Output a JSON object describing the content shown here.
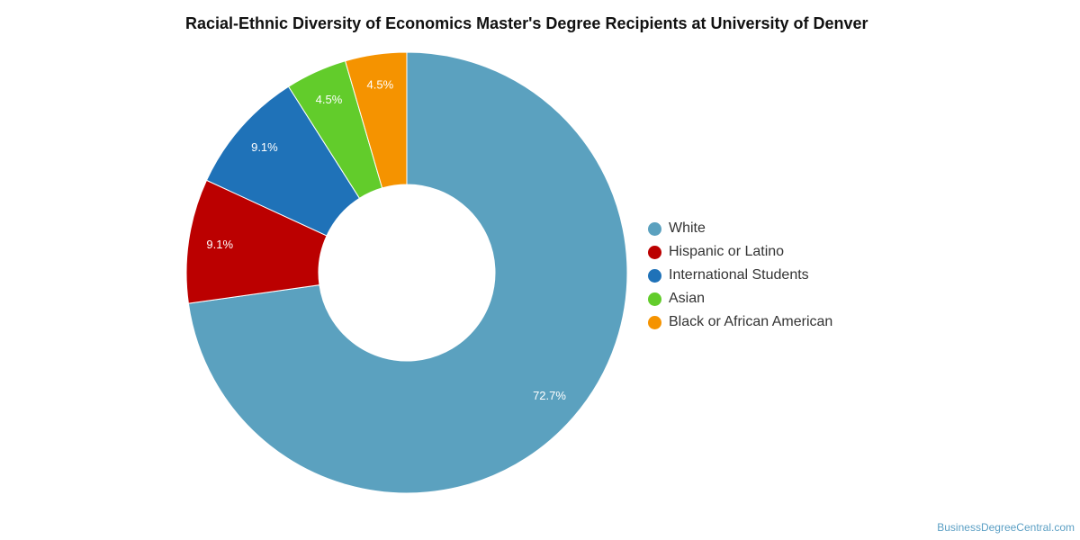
{
  "chart_data": {
    "type": "pie",
    "title": "Racial-Ethnic Diversity of Economics Master's Degree Recipients at University of Denver",
    "donut": true,
    "legend_position": "right",
    "slices": [
      {
        "label": "White",
        "value": 72.7,
        "display": "72.7%",
        "color": "#5ba1bf"
      },
      {
        "label": "Hispanic or Latino",
        "value": 9.1,
        "display": "9.1%",
        "color": "#bb0000"
      },
      {
        "label": "International Students",
        "value": 9.1,
        "display": "9.1%",
        "color": "#1f72b8"
      },
      {
        "label": "Asian",
        "value": 4.5,
        "display": "4.5%",
        "color": "#62cc2b"
      },
      {
        "label": "Black or African American",
        "value": 4.5,
        "display": "4.5%",
        "color": "#f59300"
      }
    ]
  },
  "watermark": "BusinessDegreeCentral.com"
}
